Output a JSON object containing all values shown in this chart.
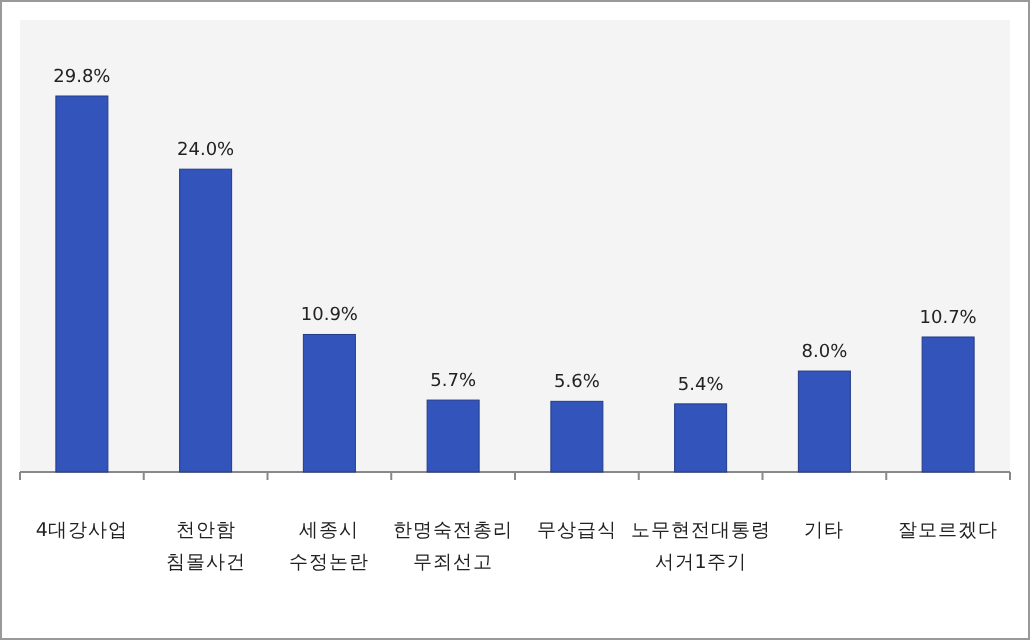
{
  "chart_data": {
    "type": "bar",
    "categories": [
      "4대강사업",
      "천안함 침몰사건",
      "세종시 수정논란",
      "한명숙전총리 무죄선고",
      "무상급식",
      "노무현전대통령 서거1주기",
      "기타",
      "잘모르겠다"
    ],
    "values": [
      29.8,
      24.0,
      10.9,
      5.7,
      5.6,
      5.4,
      8.0,
      10.7
    ],
    "value_labels": [
      "29.8%",
      "24.0%",
      "10.9%",
      "5.7%",
      "5.6%",
      "5.4%",
      "8.0%",
      "10.7%"
    ],
    "color": "#3355bb"
  }
}
